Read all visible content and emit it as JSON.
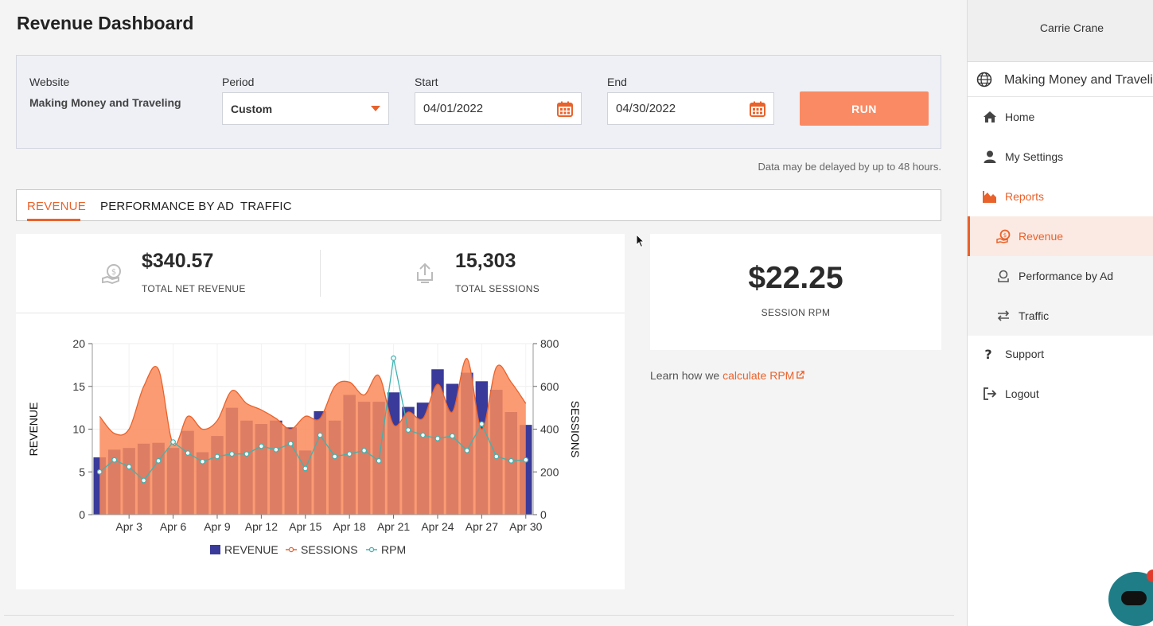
{
  "page_title": "Revenue Dashboard",
  "filters": {
    "website_label": "Website",
    "website_value": "Making Money and Traveling",
    "period_label": "Period",
    "period_value": "Custom",
    "start_label": "Start",
    "start_value": "04/01/2022",
    "end_label": "End",
    "end_value": "04/30/2022",
    "run_label": "RUN"
  },
  "delay_note": "Data may be delayed by up to 48 hours.",
  "tabs": [
    {
      "label": "REVENUE",
      "active": true
    },
    {
      "label": "PERFORMANCE BY AD",
      "active": false
    },
    {
      "label": "TRAFFIC",
      "active": false
    }
  ],
  "kpis": {
    "revenue_value": "$340.57",
    "revenue_label": "TOTAL NET REVENUE",
    "sessions_value": "15,303",
    "sessions_label": "TOTAL SESSIONS",
    "rpm_value": "$22.25",
    "rpm_label": "SESSION RPM"
  },
  "learn": {
    "prefix": "Learn how we ",
    "link_text": "calculate RPM"
  },
  "sidebar": {
    "user_name": "Carrie Crane",
    "site_name": "Making Money and Traveling",
    "items": [
      {
        "label": "Home",
        "icon": "home-icon"
      },
      {
        "label": "My Settings",
        "icon": "user-icon"
      },
      {
        "label": "Reports",
        "icon": "area-chart-icon"
      },
      {
        "label": "Revenue",
        "icon": "revenue-icon"
      },
      {
        "label": "Performance by Ad",
        "icon": "ad-icon"
      },
      {
        "label": "Traffic",
        "icon": "arrows-icon"
      },
      {
        "label": "Support",
        "icon": "question-icon"
      },
      {
        "label": "Logout",
        "icon": "logout-icon"
      }
    ]
  },
  "colors": {
    "accent": "#e9622b",
    "run_button": "#fa8a63",
    "revenue_bar": "#3a3a9a",
    "sessions_fill": "#fa8a5a",
    "rpm_line": "#3fb3b0"
  },
  "chart_data": {
    "type": "bar",
    "x": [
      1,
      2,
      3,
      4,
      5,
      6,
      7,
      8,
      9,
      10,
      11,
      12,
      13,
      14,
      15,
      16,
      17,
      18,
      19,
      20,
      21,
      22,
      23,
      24,
      25,
      26,
      27,
      28,
      29,
      30
    ],
    "x_tick_labels": [
      "Apr 3",
      "Apr 6",
      "Apr 9",
      "Apr 12",
      "Apr 15",
      "Apr 18",
      "Apr 21",
      "Apr 24",
      "Apr 27",
      "Apr 30"
    ],
    "x_tick_days": [
      3,
      6,
      9,
      12,
      15,
      18,
      21,
      24,
      27,
      30
    ],
    "ylabel": "REVENUE",
    "y2label": "SESSIONS",
    "ylim": [
      0,
      20
    ],
    "y2lim": [
      0,
      800
    ],
    "yticks": [
      0,
      5,
      10,
      15,
      20
    ],
    "y2ticks": [
      0,
      200,
      400,
      600,
      800
    ],
    "series": [
      {
        "name": "REVENUE",
        "type": "bar",
        "axis": "left",
        "values": [
          6.7,
          7.6,
          7.8,
          8.3,
          8.4,
          7.8,
          9.8,
          7.3,
          9.2,
          12.5,
          11,
          10.6,
          11,
          10.2,
          7.5,
          12.1,
          11,
          14,
          13.2,
          13.2,
          14.3,
          12.6,
          13.1,
          17,
          15.3,
          16.6,
          15.6,
          14.6,
          12,
          10.5
        ]
      },
      {
        "name": "SESSIONS",
        "type": "area",
        "axis": "right",
        "values": [
          460,
          380,
          400,
          600,
          680,
          330,
          460,
          400,
          440,
          580,
          520,
          490,
          450,
          400,
          460,
          450,
          600,
          620,
          560,
          650,
          420,
          480,
          450,
          610,
          480,
          730,
          400,
          690,
          620,
          520
        ]
      },
      {
        "name": "RPM",
        "type": "line",
        "axis": "left",
        "values": [
          5,
          6.4,
          5.6,
          4,
          6.3,
          8.5,
          7.2,
          6.2,
          6.8,
          7.1,
          7.1,
          8,
          7.6,
          8.3,
          5.4,
          9.3,
          6.8,
          7.1,
          7.5,
          6.3,
          18.3,
          9.9,
          9.3,
          8.9,
          9.2,
          7.5,
          10.6,
          6.8,
          6.3,
          6.4
        ]
      }
    ],
    "legend": [
      "REVENUE",
      "SESSIONS",
      "RPM"
    ],
    "legend_position": "bottom"
  }
}
